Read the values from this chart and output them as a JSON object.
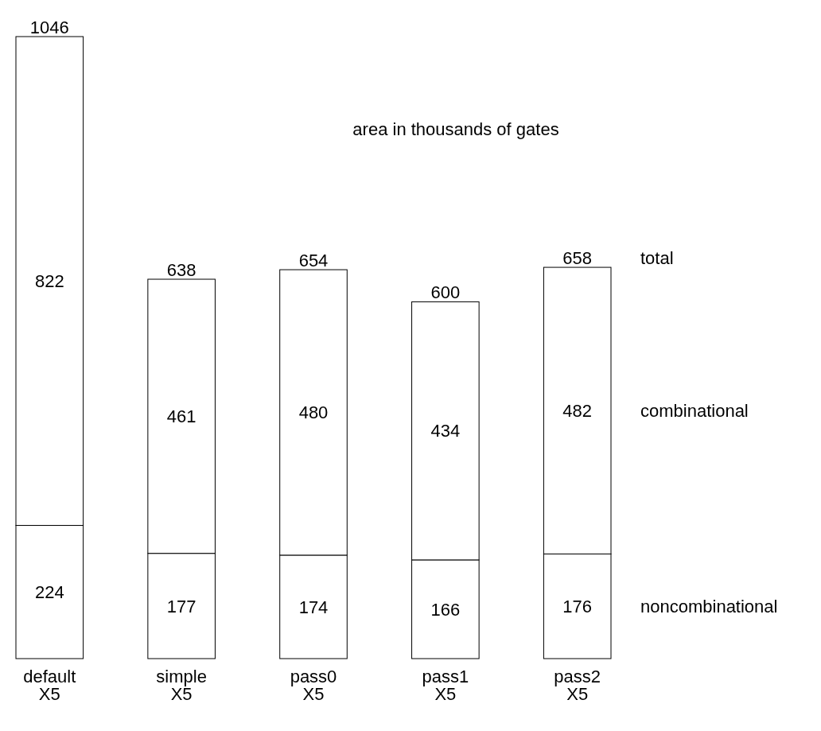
{
  "chart_data": {
    "type": "bar",
    "title": "area in thousands of gates",
    "categories": [
      "default\nX5",
      "simple\nX5",
      "pass0\nX5",
      "pass1\nX5",
      "pass2\nX5"
    ],
    "stacked": true,
    "data_labels": true,
    "series": [
      {
        "name": "noncombinational",
        "color": "#ffffff",
        "values": [
          224,
          177,
          174,
          166,
          176
        ]
      },
      {
        "name": "combinational",
        "color": "#ffffff",
        "values": [
          822,
          461,
          480,
          434,
          482
        ]
      }
    ],
    "totals": [
      "1046",
      "638",
      "654",
      "600",
      "658"
    ],
    "annotations": [
      "total"
    ]
  }
}
